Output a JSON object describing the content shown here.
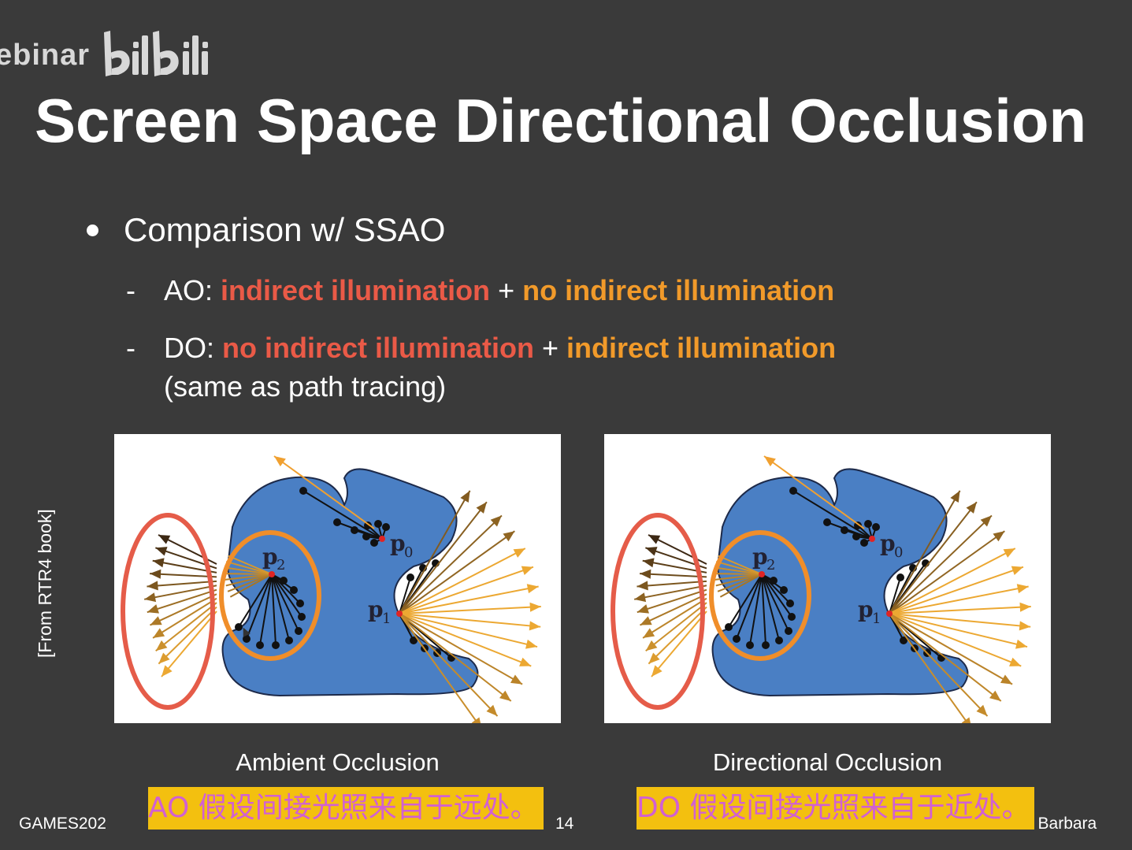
{
  "watermark": {
    "text": "ebinar",
    "logo": "bilibili"
  },
  "slide": {
    "title": "Screen Space Directional Occlusion",
    "bullet": "Comparison w/ SSAO",
    "ao_line": {
      "dash": "-",
      "prefix": "AO: ",
      "part1": "indirect illumination",
      "plus": " + ",
      "part2": "no indirect illumination"
    },
    "do_line": {
      "dash": "-",
      "prefix": "DO: ",
      "part1": "no indirect illumination",
      "plus": " + ",
      "part2": "indirect illumination",
      "continuation": "(same as path tracing)"
    },
    "source_note": "[From RTR4 book]",
    "figures": [
      {
        "caption": "Ambient Occlusion",
        "labels": {
          "p0": "p",
          "p0_sub": "0",
          "p1": "p",
          "p1_sub": "1",
          "p2": "p",
          "p2_sub": "2"
        }
      },
      {
        "caption": "Directional Occlusion",
        "labels": {
          "p0": "p",
          "p0_sub": "0",
          "p1": "p",
          "p1_sub": "1",
          "p2": "p",
          "p2_sub": "2"
        }
      }
    ],
    "footer": {
      "left": "GAMES202",
      "page": "14",
      "right": "a Barbara"
    }
  },
  "subtitles": {
    "ao": "AO 假设间接光照来自于远处。",
    "do": "DO 假设间接光照来自于近处。"
  },
  "colors": {
    "background": "#3a3a3a",
    "red_text": "#ea5a47",
    "orange_text": "#f19a2a",
    "blob_blue": "#4a7fc4",
    "ellipse_red": "#e55c49",
    "ellipse_orange": "#f08e2a",
    "subtitle_bg": "#f3c00f",
    "subtitle_text": "#d160d2"
  }
}
